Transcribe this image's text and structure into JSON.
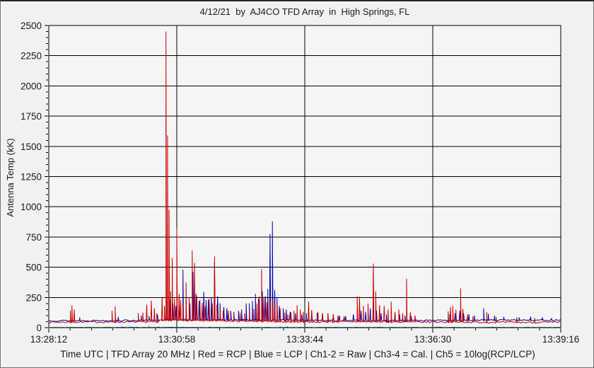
{
  "window": {
    "bg": "#f1f1f1",
    "plot_bg": "#f5f5f5",
    "grid_color": "#000000",
    "text_color": "#1a1a1a"
  },
  "chart_data": {
    "type": "line",
    "title": "4/12/21  by  AJ4CO TFD Array  in  High Springs, FL",
    "ylabel": "Antenna Temp (kK)",
    "xlabel": "Time UTC",
    "caption": "Time UTC | TFD Array 20 MHz | Red = RCP | Blue = LCP | Ch1-2 = Raw | Ch3-4 = Cal. | Ch5 = 10log(RCP/LCP)",
    "x_ticks": [
      "13:28:12",
      "13:30:58",
      "13:33:44",
      "13:36:30",
      "13:39:16"
    ],
    "x_tick_seconds": [
      0,
      166,
      332,
      498,
      664
    ],
    "x_minor_divisions_per_major": 6,
    "xlim_seconds": [
      0,
      664
    ],
    "y_ticks": [
      0,
      250,
      500,
      750,
      1000,
      1250,
      1500,
      1750,
      2000,
      2250,
      2500
    ],
    "y_minor_step": 50,
    "ylim": [
      0,
      2500
    ],
    "grid": "major gridlines on, black",
    "legend_position": "described in caption",
    "series": [
      {
        "name": "Ch5 10log(RCP/LCP)",
        "color": "#008080",
        "seed": 3,
        "noise": 1.5,
        "baseline": [
          [
            0,
            2
          ],
          [
            664,
            2
          ]
        ],
        "spikes": [
          [
            95,
            8
          ],
          [
            105,
            6
          ],
          [
            130,
            9
          ],
          [
            143,
            7
          ],
          [
            210,
            8
          ],
          [
            300,
            7
          ],
          [
            310,
            6
          ]
        ]
      },
      {
        "name": "LCP",
        "color": "#0000aa",
        "seed": 13,
        "noise": 6,
        "baseline": [
          [
            0,
            58
          ],
          [
            140,
            60
          ],
          [
            150,
            68
          ],
          [
            230,
            64
          ],
          [
            300,
            62
          ],
          [
            360,
            60
          ],
          [
            430,
            58
          ],
          [
            520,
            60
          ],
          [
            560,
            62
          ],
          [
            600,
            63
          ],
          [
            664,
            63
          ]
        ],
        "spikes": [
          [
            40,
            85
          ],
          [
            90,
            90
          ],
          [
            120,
            100
          ],
          [
            130,
            95
          ],
          [
            141,
            110
          ],
          [
            150,
            180
          ],
          [
            154,
            220
          ],
          [
            157,
            230
          ],
          [
            161,
            200
          ],
          [
            165,
            180
          ],
          [
            169,
            250
          ],
          [
            174,
            480
          ],
          [
            178,
            220
          ],
          [
            183,
            200
          ],
          [
            187,
            460
          ],
          [
            191,
            280
          ],
          [
            195,
            220
          ],
          [
            201,
            295
          ],
          [
            204,
            230
          ],
          [
            207,
            230
          ],
          [
            211,
            250
          ],
          [
            215,
            545
          ],
          [
            219,
            260
          ],
          [
            222,
            200
          ],
          [
            227,
            170
          ],
          [
            231,
            160
          ],
          [
            236,
            140
          ],
          [
            240,
            130
          ],
          [
            246,
            140
          ],
          [
            250,
            150
          ],
          [
            256,
            200
          ],
          [
            260,
            200
          ],
          [
            264,
            220
          ],
          [
            268,
            280
          ],
          [
            272,
            240
          ],
          [
            277,
            300
          ],
          [
            281,
            260
          ],
          [
            284,
            320
          ],
          [
            287,
            775
          ],
          [
            290,
            880
          ],
          [
            293,
            310
          ],
          [
            296,
            250
          ],
          [
            299,
            180
          ],
          [
            304,
            160
          ],
          [
            308,
            150
          ],
          [
            313,
            130
          ],
          [
            320,
            120
          ],
          [
            328,
            110
          ],
          [
            334,
            120
          ],
          [
            341,
            145
          ],
          [
            348,
            120
          ],
          [
            355,
            120
          ],
          [
            362,
            110
          ],
          [
            369,
            110
          ],
          [
            377,
            100
          ],
          [
            385,
            95
          ],
          [
            395,
            110
          ],
          [
            400,
            140
          ],
          [
            405,
            140
          ],
          [
            411,
            130
          ],
          [
            417,
            160
          ],
          [
            421,
            150
          ],
          [
            425,
            140
          ],
          [
            431,
            120
          ],
          [
            438,
            110
          ],
          [
            449,
            120
          ],
          [
            455,
            110
          ],
          [
            462,
            100
          ],
          [
            470,
            95
          ],
          [
            520,
            110
          ],
          [
            527,
            120
          ],
          [
            533,
            140
          ],
          [
            538,
            120
          ],
          [
            545,
            110
          ],
          [
            552,
            100
          ],
          [
            564,
            160
          ],
          [
            570,
            115
          ],
          [
            578,
            100
          ],
          [
            590,
            90
          ],
          [
            610,
            85
          ],
          [
            625,
            90
          ],
          [
            640,
            85
          ],
          [
            652,
            80
          ]
        ]
      },
      {
        "name": "RCP",
        "color": "#cc0000",
        "seed": 7,
        "noise": 7,
        "baseline": [
          [
            0,
            46
          ],
          [
            140,
            48
          ],
          [
            145,
            60
          ],
          [
            175,
            62
          ],
          [
            230,
            55
          ],
          [
            300,
            50
          ],
          [
            340,
            48
          ],
          [
            420,
            50
          ],
          [
            470,
            46
          ],
          [
            520,
            48
          ],
          [
            560,
            45
          ],
          [
            600,
            44
          ],
          [
            664,
            44
          ]
        ],
        "spikes": [
          [
            28,
            140
          ],
          [
            30,
            185
          ],
          [
            33,
            150
          ],
          [
            82,
            140
          ],
          [
            86,
            175
          ],
          [
            116,
            120
          ],
          [
            122,
            125
          ],
          [
            127,
            190
          ],
          [
            133,
            225
          ],
          [
            137,
            160
          ],
          [
            140,
            120
          ],
          [
            147,
            250
          ],
          [
            150,
            160
          ],
          [
            152,
            2450
          ],
          [
            154,
            1590
          ],
          [
            156,
            975
          ],
          [
            158,
            300
          ],
          [
            160,
            575
          ],
          [
            163,
            240
          ],
          [
            166,
            820
          ],
          [
            169,
            280
          ],
          [
            171,
            230
          ],
          [
            174,
            200
          ],
          [
            178,
            375
          ],
          [
            182,
            250
          ],
          [
            186,
            640
          ],
          [
            189,
            535
          ],
          [
            192,
            260
          ],
          [
            196,
            230
          ],
          [
            199,
            205
          ],
          [
            203,
            180
          ],
          [
            208,
            240
          ],
          [
            212,
            200
          ],
          [
            215,
            590
          ],
          [
            218,
            190
          ],
          [
            222,
            160
          ],
          [
            226,
            140
          ],
          [
            233,
            140
          ],
          [
            240,
            120
          ],
          [
            248,
            125
          ],
          [
            254,
            120
          ],
          [
            260,
            145
          ],
          [
            266,
            155
          ],
          [
            270,
            200
          ],
          [
            273,
            260
          ],
          [
            276,
            485
          ],
          [
            279,
            255
          ],
          [
            283,
            210
          ],
          [
            287,
            240
          ],
          [
            290,
            230
          ],
          [
            293,
            200
          ],
          [
            296,
            200
          ],
          [
            300,
            160
          ],
          [
            306,
            125
          ],
          [
            310,
            110
          ],
          [
            314,
            130
          ],
          [
            318,
            140
          ],
          [
            322,
            185
          ],
          [
            326,
            150
          ],
          [
            330,
            130
          ],
          [
            337,
            215
          ],
          [
            341,
            140
          ],
          [
            349,
            130
          ],
          [
            355,
            110
          ],
          [
            362,
            120
          ],
          [
            369,
            110
          ],
          [
            375,
            100
          ],
          [
            383,
            95
          ],
          [
            400,
            260
          ],
          [
            403,
            255
          ],
          [
            408,
            180
          ],
          [
            414,
            200
          ],
          [
            421,
            530
          ],
          [
            424,
            300
          ],
          [
            429,
            185
          ],
          [
            435,
            180
          ],
          [
            440,
            150
          ],
          [
            444,
            215
          ],
          [
            449,
            130
          ],
          [
            454,
            150
          ],
          [
            459,
            120
          ],
          [
            464,
            405
          ],
          [
            469,
            130
          ],
          [
            475,
            100
          ],
          [
            518,
            135
          ],
          [
            521,
            170
          ],
          [
            524,
            180
          ],
          [
            528,
            150
          ],
          [
            534,
            325
          ],
          [
            537,
            155
          ],
          [
            543,
            110
          ],
          [
            550,
            95
          ],
          [
            568,
            130
          ],
          [
            580,
            90
          ],
          [
            607,
            85
          ],
          [
            630,
            80
          ]
        ]
      }
    ]
  }
}
